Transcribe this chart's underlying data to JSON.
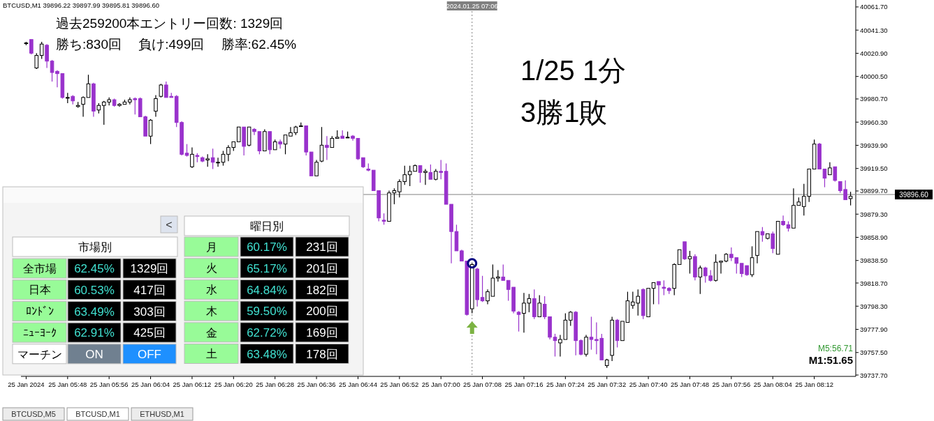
{
  "chart_data": [
    {
      "type": "candlestick",
      "x": [
        "2024-01-25T05:40",
        "2024-01-25T05:41",
        "2024-01-25T05:42",
        "2024-01-25T05:43",
        "2024-01-25T05:44",
        "2024-01-25T05:45",
        "2024-01-25T05:46",
        "2024-01-25T05:47",
        "2024-01-25T05:48",
        "2024-01-25T05:49",
        "2024-01-25T05:50",
        "2024-01-25T05:51",
        "2024-01-25T05:52",
        "2024-01-25T05:53",
        "2024-01-25T05:54",
        "2024-01-25T05:55",
        "2024-01-25T05:56",
        "2024-01-25T05:57",
        "2024-01-25T05:58",
        "2024-01-25T05:59",
        "2024-01-25T06:00",
        "2024-01-25T06:01",
        "2024-01-25T06:02",
        "2024-01-25T06:03",
        "2024-01-25T06:04",
        "2024-01-25T06:05",
        "2024-01-25T06:06",
        "2024-01-25T06:07",
        "2024-01-25T06:08",
        "2024-01-25T06:09",
        "2024-01-25T06:10",
        "2024-01-25T06:11",
        "2024-01-25T06:12",
        "2024-01-25T06:13",
        "2024-01-25T06:14",
        "2024-01-25T06:15",
        "2024-01-25T06:16",
        "2024-01-25T06:17",
        "2024-01-25T06:18",
        "2024-01-25T06:19",
        "2024-01-25T06:20",
        "2024-01-25T06:21",
        "2024-01-25T06:22",
        "2024-01-25T06:23",
        "2024-01-25T06:24",
        "2024-01-25T06:25",
        "2024-01-25T06:26",
        "2024-01-25T06:27",
        "2024-01-25T06:28",
        "2024-01-25T06:29",
        "2024-01-25T06:30",
        "2024-01-25T06:31",
        "2024-01-25T06:32",
        "2024-01-25T06:33",
        "2024-01-25T06:34",
        "2024-01-25T06:35",
        "2024-01-25T06:36",
        "2024-01-25T06:37",
        "2024-01-25T06:38",
        "2024-01-25T06:39",
        "2024-01-25T06:40",
        "2024-01-25T06:41",
        "2024-01-25T06:42",
        "2024-01-25T06:43",
        "2024-01-25T06:44",
        "2024-01-25T06:45",
        "2024-01-25T06:46",
        "2024-01-25T06:47",
        "2024-01-25T06:48",
        "2024-01-25T06:49",
        "2024-01-25T06:50",
        "2024-01-25T06:51",
        "2024-01-25T06:52",
        "2024-01-25T06:53",
        "2024-01-25T06:54",
        "2024-01-25T06:55",
        "2024-01-25T06:56",
        "2024-01-25T06:57",
        "2024-01-25T06:58",
        "2024-01-25T06:59",
        "2024-01-25T07:00",
        "2024-01-25T07:01",
        "2024-01-25T07:02",
        "2024-01-25T07:03",
        "2024-01-25T07:04",
        "2024-01-25T07:05",
        "2024-01-25T07:06",
        "2024-01-25T07:07",
        "2024-01-25T07:08",
        "2024-01-25T07:09",
        "2024-01-25T07:10",
        "2024-01-25T07:11",
        "2024-01-25T07:12",
        "2024-01-25T07:13",
        "2024-01-25T07:14",
        "2024-01-25T07:15",
        "2024-01-25T07:16",
        "2024-01-25T07:17",
        "2024-01-25T07:18",
        "2024-01-25T07:19",
        "2024-01-25T07:20",
        "2024-01-25T07:21",
        "2024-01-25T07:22",
        "2024-01-25T07:23",
        "2024-01-25T07:24",
        "2024-01-25T07:25",
        "2024-01-25T07:26",
        "2024-01-25T07:27",
        "2024-01-25T07:28",
        "2024-01-25T07:29",
        "2024-01-25T07:30",
        "2024-01-25T07:31",
        "2024-01-25T07:32",
        "2024-01-25T07:33",
        "2024-01-25T07:34",
        "2024-01-25T07:35",
        "2024-01-25T07:36",
        "2024-01-25T07:37",
        "2024-01-25T07:38",
        "2024-01-25T07:39",
        "2024-01-25T07:40",
        "2024-01-25T07:41",
        "2024-01-25T07:42",
        "2024-01-25T07:43",
        "2024-01-25T07:44",
        "2024-01-25T07:45",
        "2024-01-25T07:46",
        "2024-01-25T07:47",
        "2024-01-25T07:48",
        "2024-01-25T07:49",
        "2024-01-25T07:50",
        "2024-01-25T07:51",
        "2024-01-25T07:52",
        "2024-01-25T07:53",
        "2024-01-25T07:54",
        "2024-01-25T07:55",
        "2024-01-25T07:56",
        "2024-01-25T07:57",
        "2024-01-25T07:58",
        "2024-01-25T07:59",
        "2024-01-25T08:00",
        "2024-01-25T08:01",
        "2024-01-25T08:02",
        "2024-01-25T08:03",
        "2024-01-25T08:04",
        "2024-01-25T08:05",
        "2024-01-25T08:06",
        "2024-01-25T08:07",
        "2024-01-25T08:08",
        "2024-01-25T08:09",
        "2024-01-25T08:10",
        "2024-01-25T08:11",
        "2024-01-25T08:12",
        "2024-01-25T08:13",
        "2024-01-25T08:14",
        "2024-01-25T08:15",
        "2024-01-25T08:16",
        "2024-01-25T08:17",
        "2024-01-25T08:18",
        "2024-01-25T08:19"
      ],
      "ohlc": [
        [
          40030,
          40031,
          40028,
          40030
        ],
        [
          40033,
          40033,
          40020,
          40021
        ],
        [
          40008,
          40021,
          40007,
          40019
        ],
        [
          40019,
          40031,
          40016,
          40029
        ],
        [
          40028,
          40029,
          40008,
          40014
        ],
        [
          40014,
          40015,
          39996,
          40004
        ],
        [
          40005,
          40006,
          39991,
          40003
        ],
        [
          40003,
          40003,
          39981,
          39982
        ],
        [
          39982,
          39986,
          39977,
          39982
        ],
        [
          39983,
          39984,
          39976,
          39979
        ],
        [
          39974,
          39978,
          39973,
          39975
        ],
        [
          39976,
          39983,
          39965,
          39982
        ],
        [
          39982,
          40002,
          39982,
          39994
        ],
        [
          39994,
          39995,
          39965,
          39970
        ],
        [
          39971,
          39977,
          39968,
          39975
        ],
        [
          39975,
          39979,
          39958,
          39978
        ],
        [
          39978,
          39982,
          39975,
          39980
        ],
        [
          39980,
          39981,
          39974,
          39975
        ],
        [
          39975,
          39977,
          39974,
          39976
        ],
        [
          39976,
          39980,
          39976,
          39978
        ],
        [
          39978,
          39982,
          39976,
          39980
        ],
        [
          39981,
          39982,
          39967,
          39980
        ],
        [
          39981,
          39982,
          39965,
          39965
        ],
        [
          39965,
          39966,
          39948,
          39948
        ],
        [
          39948,
          39963,
          39941,
          39962
        ],
        [
          39970,
          39984,
          39965,
          39981
        ],
        [
          39983,
          39994,
          39982,
          39993
        ],
        [
          39993,
          39996,
          39982,
          39982
        ],
        [
          39983,
          39986,
          39982,
          39982
        ],
        [
          39983,
          39984,
          39956,
          39960
        ],
        [
          39960,
          39961,
          39931,
          39932
        ],
        [
          39933,
          39941,
          39930,
          39931
        ],
        [
          39921,
          39938,
          39920,
          39932
        ],
        [
          39931,
          39933,
          39925,
          39930
        ],
        [
          39929,
          39930,
          39925,
          39926
        ],
        [
          39927,
          39932,
          39921,
          39928
        ],
        [
          39929,
          39937,
          39919,
          39925
        ],
        [
          39925,
          39929,
          39921,
          39925
        ],
        [
          39925,
          39935,
          39922,
          39932
        ],
        [
          39932,
          39940,
          39926,
          39938
        ],
        [
          39938,
          39943,
          39935,
          39943
        ],
        [
          39943,
          39956,
          39943,
          39956
        ],
        [
          39956,
          39956,
          39931,
          39939
        ],
        [
          39940,
          39956,
          39939,
          39956
        ],
        [
          39954,
          39955,
          39949,
          39952
        ],
        [
          39952,
          39952,
          39932,
          39935
        ],
        [
          39935,
          39954,
          39935,
          39952
        ],
        [
          39952,
          39952,
          39932,
          39936
        ],
        [
          39936,
          39945,
          39936,
          39943
        ],
        [
          39943,
          39945,
          39937,
          39941
        ],
        [
          39941,
          39949,
          39932,
          39949
        ],
        [
          39948,
          39956,
          39948,
          39951
        ],
        [
          39951,
          39957,
          39949,
          39956
        ],
        [
          39957,
          39960,
          39957,
          39957
        ],
        [
          39957,
          39957,
          39931,
          39934
        ],
        [
          39934,
          39934,
          39913,
          39913
        ],
        [
          39913,
          39927,
          39913,
          39925
        ],
        [
          39926,
          39956,
          39925,
          39940
        ],
        [
          39940,
          39948,
          39927,
          39938
        ],
        [
          39938,
          39948,
          39938,
          39946
        ],
        [
          39946,
          39953,
          39946,
          39947
        ],
        [
          39948,
          39953,
          39946,
          39946
        ],
        [
          39947,
          39952,
          39947,
          39947
        ],
        [
          39948,
          39949,
          39944,
          39946
        ],
        [
          39946,
          39946,
          39927,
          39928
        ],
        [
          39929,
          39929,
          39920,
          39921
        ],
        [
          39919,
          39924,
          39917,
          39918
        ],
        [
          39918,
          39918,
          39900,
          39900
        ],
        [
          39900,
          39900,
          39873,
          39876
        ],
        [
          39874,
          39880,
          39870,
          39873
        ],
        [
          39873,
          39900,
          39873,
          39898
        ],
        [
          39898,
          39902,
          39888,
          39900
        ],
        [
          39899,
          39910,
          39894,
          39908
        ],
        [
          39908,
          39922,
          39905,
          39914
        ],
        [
          39914,
          39922,
          39904,
          39917
        ],
        [
          39917,
          39923,
          39917,
          39922
        ],
        [
          39922,
          39922,
          39907,
          39916
        ],
        [
          39916,
          39919,
          39905,
          39917
        ],
        [
          39916,
          39923,
          39910,
          39910
        ],
        [
          39910,
          39919,
          39909,
          39917
        ],
        [
          39917,
          39927,
          39910,
          39916
        ],
        [
          39917,
          39924,
          39888,
          39888
        ],
        [
          39888,
          39888,
          39836,
          39864
        ],
        [
          39864,
          39870,
          39847,
          39847
        ],
        [
          39847,
          39848,
          39838,
          39838
        ],
        [
          39838,
          39838,
          39790,
          39791
        ],
        [
          39796,
          39836,
          39792,
          39835
        ],
        [
          39831,
          39832,
          39798,
          39804
        ],
        [
          39806,
          39825,
          39802,
          39803
        ],
        [
          39803,
          39813,
          39800,
          39811
        ],
        [
          39807,
          39835,
          39807,
          39823
        ],
        [
          39823,
          39830,
          39820,
          39824
        ],
        [
          39824,
          39835,
          39821,
          39821
        ],
        [
          39821,
          39821,
          39803,
          39813
        ],
        [
          39815,
          39815,
          39792,
          39794
        ],
        [
          39793,
          39794,
          39776,
          39791
        ],
        [
          39792,
          39810,
          39775,
          39801
        ],
        [
          39801,
          39809,
          39793,
          39805
        ],
        [
          39805,
          39813,
          39787,
          39789
        ],
        [
          39789,
          39808,
          39789,
          39801
        ],
        [
          39800,
          39807,
          39787,
          39789
        ],
        [
          39789,
          39789,
          39769,
          39771
        ],
        [
          39771,
          39774,
          39754,
          39768
        ],
        [
          39766,
          39773,
          39754,
          39769
        ],
        [
          39769,
          39792,
          39769,
          39786
        ],
        [
          39786,
          39794,
          39781,
          39793
        ],
        [
          39793,
          39794,
          39755,
          39768
        ],
        [
          39768,
          39769,
          39755,
          39756
        ],
        [
          39756,
          39773,
          39754,
          39771
        ],
        [
          39771,
          39789,
          39760,
          39769
        ],
        [
          39769,
          39784,
          39756,
          39768
        ],
        [
          39770,
          39774,
          39751,
          39751
        ],
        [
          39746,
          39752,
          39744,
          39751
        ],
        [
          39755,
          39789,
          39750,
          39786
        ],
        [
          39786,
          39787,
          39762,
          39768
        ],
        [
          39768,
          39785,
          39768,
          39785
        ],
        [
          39784,
          39811,
          39784,
          39803
        ],
        [
          39799,
          39811,
          39796,
          39802
        ],
        [
          39801,
          39813,
          39790,
          39807
        ],
        [
          39813,
          39814,
          39787,
          39790
        ],
        [
          39789,
          39814,
          39789,
          39814
        ],
        [
          39814,
          39819,
          39800,
          39819
        ],
        [
          39820,
          39820,
          39800,
          39817
        ],
        [
          39815,
          39821,
          39808,
          39814
        ],
        [
          39814,
          39815,
          39809,
          39812
        ],
        [
          39814,
          39836,
          39808,
          39835
        ],
        [
          39835,
          39848,
          39835,
          39848
        ],
        [
          39855,
          39855,
          39839,
          39840
        ],
        [
          39840,
          39847,
          39827,
          39842
        ],
        [
          39842,
          39844,
          39821,
          39824
        ],
        [
          39824,
          39834,
          39809,
          39832
        ],
        [
          39832,
          39833,
          39819,
          39825
        ],
        [
          39825,
          39830,
          39820,
          39821
        ],
        [
          39821,
          39844,
          39820,
          39837
        ],
        [
          39837,
          39838,
          39827,
          39838
        ],
        [
          39838,
          39845,
          39837,
          39844
        ],
        [
          39844,
          39850,
          39838,
          39841
        ],
        [
          39841,
          39841,
          39827,
          39836
        ],
        [
          39836,
          39836,
          39824,
          39827
        ],
        [
          39834,
          39834,
          39825,
          39826
        ],
        [
          39826,
          39851,
          39824,
          39841
        ],
        [
          39843,
          39864,
          39836,
          39864
        ],
        [
          39864,
          39868,
          39855,
          39861
        ],
        [
          39858,
          39862,
          39857,
          39862
        ],
        [
          39862,
          39864,
          39845,
          39849
        ],
        [
          39844,
          39873,
          39844,
          39873
        ],
        [
          39873,
          39878,
          39869,
          39870
        ],
        [
          39870,
          39873,
          39864,
          39867
        ],
        [
          39867,
          39902,
          39867,
          39887
        ],
        [
          39887,
          39894,
          39887,
          39890
        ],
        [
          39886,
          39906,
          39878,
          39895
        ],
        [
          39895,
          39919,
          39890,
          39919
        ],
        [
          39919,
          39945,
          39919,
          39941
        ],
        [
          39941,
          39942,
          39919,
          39919
        ],
        [
          39919,
          39919,
          39903,
          39911
        ],
        [
          39914,
          39925,
          39914,
          39920
        ],
        [
          39921,
          39921,
          39908,
          39909
        ],
        [
          39908,
          39908,
          39898,
          39900
        ],
        [
          39901,
          39909,
          39892,
          39892
        ],
        [
          39893,
          39899,
          39887,
          39895
        ]
      ],
      "colors": [
        "#ffffff",
        "#9932cc",
        "#ffffff",
        "#ffffff",
        "#9932cc",
        "#9932cc",
        "#9932cc",
        "#9932cc",
        "#ffffff",
        "#9932cc",
        "#ffffff",
        "#ffffff",
        "#ffffff",
        "#9932cc",
        "#ffffff",
        "#ffffff",
        "#ffffff",
        "#9932cc",
        "#ffffff",
        "#ffffff",
        "#ffffff",
        "#9932cc",
        "#9932cc",
        "#9932cc",
        "#ffffff",
        "#ffffff",
        "#ffffff",
        "#9932cc",
        "#9932cc",
        "#9932cc",
        "#9932cc",
        "#9932cc",
        "#ffffff",
        "#9932cc",
        "#9932cc",
        "#ffffff",
        "#9932cc",
        "#ffffff",
        "#ffffff",
        "#ffffff",
        "#ffffff",
        "#ffffff",
        "#9932cc",
        "#ffffff",
        "#9932cc",
        "#9932cc",
        "#ffffff",
        "#9932cc",
        "#ffffff",
        "#9932cc",
        "#ffffff",
        "#ffffff",
        "#ffffff",
        "#ffffff",
        "#9932cc",
        "#9932cc",
        "#ffffff",
        "#ffffff",
        "#9932cc",
        "#ffffff",
        "#ffffff",
        "#9932cc",
        "#ffffff",
        "#9932cc",
        "#9932cc",
        "#9932cc",
        "#9932cc",
        "#9932cc",
        "#9932cc",
        "#9932cc",
        "#ffffff",
        "#ffffff",
        "#ffffff",
        "#ffffff",
        "#ffffff",
        "#ffffff",
        "#9932cc",
        "#ffffff",
        "#9932cc",
        "#ffffff",
        "#9932cc",
        "#9932cc",
        "#9932cc",
        "#9932cc",
        "#9932cc",
        "#9932cc",
        "#ffffff",
        "#9932cc",
        "#9932cc",
        "#ffffff",
        "#ffffff",
        "#ffffff",
        "#9932cc",
        "#9932cc",
        "#9932cc",
        "#9932cc",
        "#ffffff",
        "#ffffff",
        "#9932cc",
        "#ffffff",
        "#9932cc",
        "#9932cc",
        "#9932cc",
        "#ffffff",
        "#ffffff",
        "#ffffff",
        "#9932cc",
        "#9932cc",
        "#ffffff",
        "#9932cc",
        "#9932cc",
        "#9932cc",
        "#ffffff",
        "#ffffff",
        "#9932cc",
        "#ffffff",
        "#ffffff",
        "#ffffff",
        "#ffffff",
        "#9932cc",
        "#ffffff",
        "#ffffff",
        "#9932cc",
        "#9932cc",
        "#9932cc",
        "#ffffff",
        "#ffffff",
        "#9932cc",
        "#ffffff",
        "#9932cc",
        "#ffffff",
        "#9932cc",
        "#9932cc",
        "#ffffff",
        "#ffffff",
        "#ffffff",
        "#9932cc",
        "#9932cc",
        "#9932cc",
        "#9932cc",
        "#ffffff",
        "#ffffff",
        "#9932cc",
        "#ffffff",
        "#9932cc",
        "#ffffff",
        "#9932cc",
        "#9932cc",
        "#ffffff",
        "#ffffff",
        "#ffffff",
        "#ffffff",
        "#ffffff",
        "#9932cc",
        "#9932cc",
        "#ffffff",
        "#9932cc",
        "#9932cc",
        "#9932cc",
        "#ffffff"
      ],
      "series": [
        {
          "type": "scatter",
          "x": [
            "2024-01-25T07:06"
          ],
          "values": [
            39836
          ],
          "color": "#000080",
          "marker": "circle"
        }
      ],
      "xlim": [
        "2024-01-25T05:39",
        "2024-01-25T08:20"
      ],
      "ylim": [
        39736.5,
        40067.8
      ],
      "xticks": [
        {
          "value": "2024-01-25T05:40",
          "label": "25 Jan 2024"
        },
        {
          "value": "2024-01-25T05:48",
          "label": "25 Jan 05:48"
        },
        {
          "value": "2024-01-25T05:56",
          "label": "25 Jan 05:56"
        },
        {
          "value": "2024-01-25T06:04",
          "label": "25 Jan 06:04"
        },
        {
          "value": "2024-01-25T06:12",
          "label": "25 Jan 06:12"
        },
        {
          "value": "2024-01-25T06:20",
          "label": "25 Jan 06:20"
        },
        {
          "value": "2024-01-25T06:28",
          "label": "25 Jan 06:28"
        },
        {
          "value": "2024-01-25T06:36",
          "label": "25 Jan 06:36"
        },
        {
          "value": "2024-01-25T06:44",
          "label": "25 Jan 06:44"
        },
        {
          "value": "2024-01-25T06:52",
          "label": "25 Jan 06:52"
        },
        {
          "value": "2024-01-25T07:00",
          "label": "25 Jan 07:00"
        },
        {
          "value": "2024-01-25T07:08",
          "label": "25 Jan 07:08"
        },
        {
          "value": "2024-01-25T07:16",
          "label": "25 Jan 07:16"
        },
        {
          "value": "2024-01-25T07:24",
          "label": "25 Jan 07:24"
        },
        {
          "value": "2024-01-25T07:32",
          "label": "25 Jan 07:32"
        },
        {
          "value": "2024-01-25T07:40",
          "label": "25 Jan 07:40"
        },
        {
          "value": "2024-01-25T07:48",
          "label": "25 Jan 07:48"
        },
        {
          "value": "2024-01-25T07:56",
          "label": "25 Jan 07:56"
        },
        {
          "value": "2024-01-25T08:04",
          "label": "25 Jan 08:04"
        },
        {
          "value": "2024-01-25T08:12",
          "label": "25 Jan 08:12"
        }
      ],
      "yticks": [
        {
          "value": 40061.7,
          "label": "40061.70"
        },
        {
          "value": 40041.3,
          "label": "40041.30"
        },
        {
          "value": 40020.9,
          "label": "40020.90"
        },
        {
          "value": 40000.5,
          "label": "40000.50"
        },
        {
          "value": 39980.7,
          "label": "39980.70"
        },
        {
          "value": 39960.3,
          "label": "39960.30"
        },
        {
          "value": 39939.9,
          "label": "39939.90"
        },
        {
          "value": 39919.5,
          "label": "39919.50"
        },
        {
          "value": 39899.7,
          "label": "39899.70"
        },
        {
          "value": 39879.3,
          "label": "39879.30"
        },
        {
          "value": 39858.9,
          "label": "39858.90"
        },
        {
          "value": 39838.5,
          "label": "39838.50"
        },
        {
          "value": 39818.7,
          "label": "39818.70"
        },
        {
          "value": 39798.3,
          "label": "39798.30"
        },
        {
          "value": 39777.9,
          "label": "39777.90"
        },
        {
          "value": 39757.5,
          "label": "39757.50"
        },
        {
          "value": 39737.7,
          "label": "39737.70"
        }
      ],
      "ref_lines": [
        {
          "axis": "y",
          "value": 39896.6,
          "label": "39896.60",
          "color": "#808080",
          "line_style": "solid"
        },
        {
          "axis": "x",
          "value": "2024-01-25T07:06",
          "label": "2024.01.25 07:06",
          "color": "#808080",
          "line_style": "dotted"
        }
      ],
      "annotations": [
        "BTCUSD,M1  39896.22 39897.99 39895.81 39896.60",
        "過去259200本エントリー回数: 1329回",
        "勝ち:830回　 負け:499回　 勝率:62.45%",
        "1/25 1分",
        "3勝1敗",
        "M5:56.71",
        "M1:51.65",
        "BTCUSD,M5",
        "BTCUSD,M1",
        "ETHUSD,M1"
      ]
    },
    {
      "type": "other",
      "annotations": [
        "<",
        "市場別",
        "全市場",
        "62.45%",
        "1329回",
        "日本",
        "60.53%",
        "417回",
        "ﾛﾝﾄﾞﾝ",
        "63.49%",
        "303回",
        "ﾆｭｰﾖｰｸ",
        "62.91%",
        "425回",
        "マーチン",
        "ON",
        "OFF",
        "曜日別",
        "月",
        "60.17%",
        "231回",
        "火",
        "65.17%",
        "201回",
        "水",
        "64.84%",
        "182回",
        "木",
        "59.50%",
        "200回",
        "金",
        "62.72%",
        "169回",
        "土",
        "63.48%",
        "178回"
      ]
    }
  ]
}
